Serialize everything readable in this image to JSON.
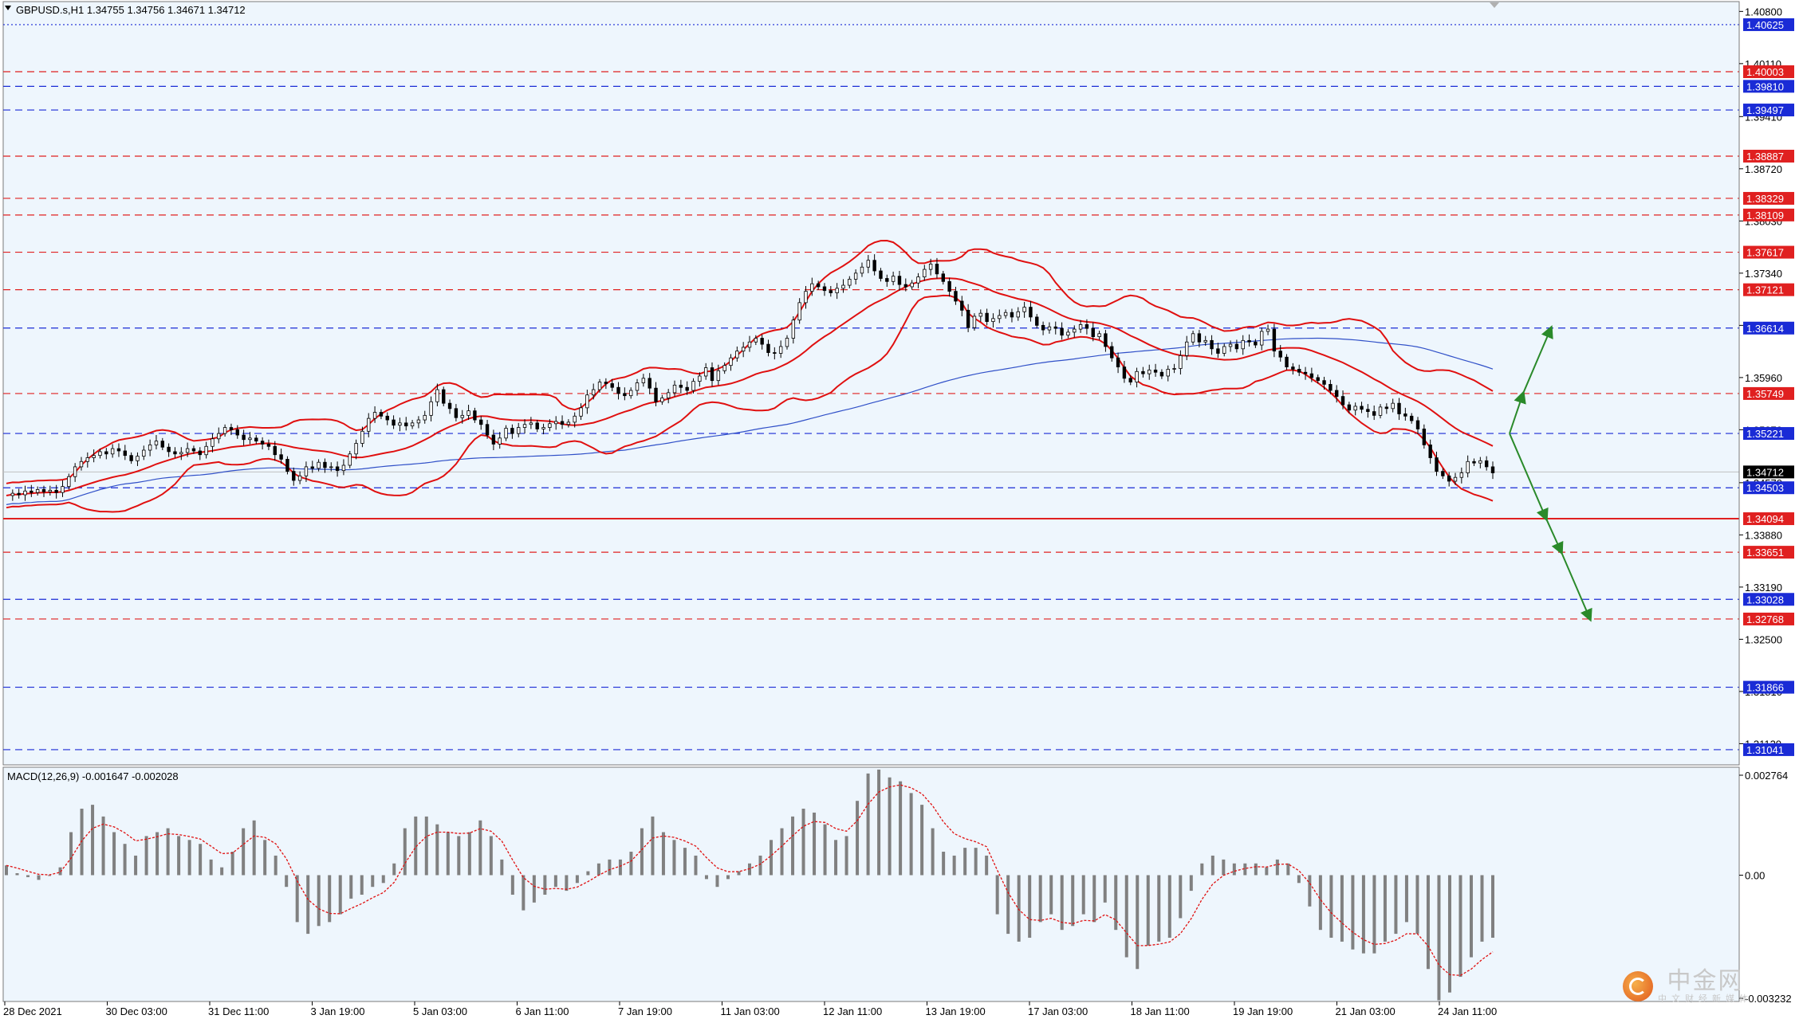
{
  "header": {
    "symbol_info": "GBPUSD.s,H1  1.34755 1.34756 1.34671 1.34712",
    "macd_info": "MACD(12,26,9) -0.001647 -0.002028"
  },
  "colors": {
    "background": "#ffffff",
    "plot_bg": "#eef6fd",
    "red_level": "#e02020",
    "blue_level": "#1a2bd6",
    "bollinger": "#e01010",
    "moving_average": "#3050c8",
    "candle": "#000000",
    "arrow": "#2a8a2a",
    "macd_hist": "#808080",
    "macd_signal": "#e01010"
  },
  "watermark": {
    "main": "中金网",
    "sub": "中文财经新媒体"
  },
  "chart_data": [
    {
      "type": "candlestick",
      "symbol": "GBPUSD.s",
      "timeframe": "H1",
      "title": "GBPUSD.s,H1  1.34755 1.34756 1.34671 1.34712",
      "last_price": 1.34712,
      "ylim": [
        1.3084,
        1.4093
      ],
      "grid": false,
      "x_ticks": [
        "28 Dec 2021",
        "30 Dec 03:00",
        "31 Dec 11:00",
        "3 Jan 19:00",
        "5 Jan 03:00",
        "6 Jan 11:00",
        "7 Jan 19:00",
        "11 Jan 03:00",
        "12 Jan 11:00",
        "13 Jan 19:00",
        "17 Jan 03:00",
        "18 Jan 11:00",
        "19 Jan 19:00",
        "21 Jan 03:00",
        "24 Jan 11:00"
      ],
      "y_ticks": [
        "1.40800",
        "1.40110",
        "1.39410",
        "1.38720",
        "1.38030",
        "1.37340",
        "1.36650",
        "1.35960",
        "1.35270",
        "1.34570",
        "1.33880",
        "1.33190",
        "1.32500",
        "1.31810",
        "1.31120"
      ],
      "levels": [
        {
          "value": 1.40625,
          "label": "1.40625",
          "color": "blue",
          "style": "dotted"
        },
        {
          "value": 1.40003,
          "label": "1.40003",
          "color": "red",
          "style": "dashed"
        },
        {
          "value": 1.3981,
          "label": "1.39810",
          "color": "blue",
          "style": "dashed"
        },
        {
          "value": 1.39497,
          "label": "1.39497",
          "color": "blue",
          "style": "dashed"
        },
        {
          "value": 1.38887,
          "label": "1.38887",
          "color": "red",
          "style": "dashed"
        },
        {
          "value": 1.38329,
          "label": "1.38329",
          "color": "red",
          "style": "dashed"
        },
        {
          "value": 1.38109,
          "label": "1.38109",
          "color": "red",
          "style": "dashed"
        },
        {
          "value": 1.37617,
          "label": "1.37617",
          "color": "red",
          "style": "dashed"
        },
        {
          "value": 1.37121,
          "label": "1.37121",
          "color": "red",
          "style": "dashed"
        },
        {
          "value": 1.36614,
          "label": "1.36614",
          "color": "blue",
          "style": "dashed"
        },
        {
          "value": 1.35749,
          "label": "1.35749",
          "color": "red",
          "style": "dashed"
        },
        {
          "value": 1.35221,
          "label": "1.35221",
          "color": "blue",
          "style": "dashed"
        },
        {
          "value": 1.34503,
          "label": "1.34503",
          "color": "blue",
          "style": "dashed"
        },
        {
          "value": 1.34094,
          "label": "1.34094",
          "color": "red",
          "style": "solid"
        },
        {
          "value": 1.33651,
          "label": "1.33651",
          "color": "red",
          "style": "dashed"
        },
        {
          "value": 1.33028,
          "label": "1.33028",
          "color": "blue",
          "style": "dashed"
        },
        {
          "value": 1.32768,
          "label": "1.32768",
          "color": "red",
          "style": "dashed"
        },
        {
          "value": 1.31866,
          "label": "1.31866",
          "color": "blue",
          "style": "dashed"
        },
        {
          "value": 1.31041,
          "label": "1.31041",
          "color": "blue",
          "style": "dashed"
        }
      ],
      "close_series": [
        1.344,
        1.3443,
        1.3441,
        1.3446,
        1.3444,
        1.3448,
        1.3445,
        1.3447,
        1.3444,
        1.3452,
        1.3465,
        1.3478,
        1.3485,
        1.349,
        1.3493,
        1.3498,
        1.3495,
        1.3502,
        1.3499,
        1.3493,
        1.3486,
        1.3492,
        1.35,
        1.3507,
        1.3512,
        1.3504,
        1.3498,
        1.3495,
        1.3497,
        1.3502,
        1.3499,
        1.3494,
        1.3505,
        1.3515,
        1.3522,
        1.353,
        1.3527,
        1.352,
        1.3514,
        1.3516,
        1.3512,
        1.3508,
        1.3505,
        1.3494,
        1.3488,
        1.3472,
        1.346,
        1.3466,
        1.3478,
        1.3476,
        1.3484,
        1.3477,
        1.3478,
        1.3473,
        1.348,
        1.3495,
        1.3509,
        1.3525,
        1.3542,
        1.355,
        1.3545,
        1.354,
        1.3533,
        1.3536,
        1.3532,
        1.3536,
        1.354,
        1.3546,
        1.3564,
        1.358,
        1.3562,
        1.3555,
        1.3543,
        1.3546,
        1.3552,
        1.354,
        1.3534,
        1.352,
        1.3508,
        1.3516,
        1.3529,
        1.3522,
        1.353,
        1.3534,
        1.3536,
        1.3528,
        1.353,
        1.3535,
        1.3538,
        1.3534,
        1.3537,
        1.3545,
        1.3556,
        1.3573,
        1.358,
        1.359,
        1.3588,
        1.3583,
        1.3575,
        1.3572,
        1.3579,
        1.3589,
        1.3595,
        1.3582,
        1.3564,
        1.3569,
        1.3576,
        1.3586,
        1.3583,
        1.3579,
        1.3591,
        1.3598,
        1.3609,
        1.3592,
        1.3605,
        1.3612,
        1.3622,
        1.3631,
        1.3636,
        1.3643,
        1.3648,
        1.364,
        1.3629,
        1.3628,
        1.3637,
        1.3648,
        1.3672,
        1.3695,
        1.371,
        1.372,
        1.3716,
        1.3711,
        1.3708,
        1.3714,
        1.3718,
        1.3726,
        1.3734,
        1.3742,
        1.3751,
        1.3737,
        1.3727,
        1.3723,
        1.373,
        1.3719,
        1.3716,
        1.3721,
        1.3729,
        1.3739,
        1.3746,
        1.3733,
        1.3723,
        1.371,
        1.3697,
        1.3685,
        1.3662,
        1.3677,
        1.3681,
        1.367,
        1.3674,
        1.3678,
        1.3682,
        1.3676,
        1.3683,
        1.3689,
        1.3676,
        1.3665,
        1.3659,
        1.3663,
        1.3661,
        1.3652,
        1.3656,
        1.366,
        1.3666,
        1.3661,
        1.365,
        1.3654,
        1.3637,
        1.3622,
        1.361,
        1.3595,
        1.359,
        1.3604,
        1.3601,
        1.3606,
        1.3603,
        1.3598,
        1.3607,
        1.3608,
        1.3625,
        1.3643,
        1.3654,
        1.3643,
        1.3645,
        1.3634,
        1.3628,
        1.3637,
        1.364,
        1.3634,
        1.3645,
        1.3643,
        1.3639,
        1.3657,
        1.366,
        1.3631,
        1.3623,
        1.361,
        1.3607,
        1.3603,
        1.3601,
        1.3596,
        1.3592,
        1.3587,
        1.3579,
        1.3571,
        1.356,
        1.3553,
        1.3558,
        1.3554,
        1.3551,
        1.3546,
        1.3557,
        1.3555,
        1.3562,
        1.3548,
        1.3545,
        1.3539,
        1.3528,
        1.3507,
        1.349,
        1.3472,
        1.3466,
        1.3459,
        1.3464,
        1.347,
        1.3485,
        1.3483,
        1.3486,
        1.3478,
        1.347
      ],
      "projection_arrows": [
        {
          "direction": "up",
          "from": 1.35221,
          "via": 1.3575,
          "to": 1.36614
        },
        {
          "direction": "down",
          "from": 1.35221,
          "via": 1.34094,
          "mid": 1.33651,
          "to": 1.32768
        }
      ]
    },
    {
      "type": "histogram",
      "name": "MACD(12,26,9)",
      "title": "MACD(12,26,9) -0.001647 -0.002028",
      "main": -0.001647,
      "signal": -0.002028,
      "ylim": [
        -0.00323,
        0.00276
      ],
      "y_ticks": [
        "0.002764",
        "0.00",
        "-0.003232"
      ],
      "macd_series": [
        0.00025,
        5e-05,
        -5e-05,
        -0.00012,
        -2e-05,
        0.0002,
        0.0011,
        0.0017,
        0.0018,
        0.0015,
        0.0011,
        0.0008,
        0.0005,
        0.001,
        0.0011,
        0.0012,
        0.001,
        0.0009,
        0.0008,
        0.0004,
        0.0002,
        0.0006,
        0.0012,
        0.0014,
        0.0009,
        0.0005,
        -0.0003,
        -0.0012,
        -0.0015,
        -0.0013,
        -0.0012,
        -0.001,
        -0.0006,
        -0.0005,
        -0.0003,
        -0.0002,
        0.0003,
        0.0012,
        0.0015,
        0.0015,
        0.0013,
        0.0011,
        0.001,
        0.0011,
        0.0014,
        0.001,
        0.0004,
        -0.0005,
        -0.0009,
        -0.0007,
        -0.0005,
        -0.0003,
        -0.0004,
        -0.0002,
        0.0001,
        0.0003,
        0.0004,
        0.0004,
        0.0006,
        0.0012,
        0.0015,
        0.0011,
        0.0009,
        0.0007,
        0.0005,
        -0.0001,
        -0.0003,
        -0.0001,
        0.0001,
        0.0003,
        0.0005,
        0.0009,
        0.0012,
        0.0015,
        0.0017,
        0.0016,
        0.0013,
        0.0009,
        0.001,
        0.0019,
        0.0026,
        0.0027,
        0.0025,
        0.0024,
        0.0021,
        0.0018,
        0.0012,
        0.0006,
        0.0005,
        0.0007,
        0.0007,
        0.0005,
        -0.001,
        -0.0015,
        -0.0017,
        -0.0016,
        -0.0012,
        -0.001,
        -0.0014,
        -0.0013,
        -0.001,
        -0.0012,
        -0.0007,
        -0.0014,
        -0.0021,
        -0.0024,
        -0.0018,
        -0.0017,
        -0.0016,
        -0.0011,
        -0.0004,
        0.0003,
        0.0005,
        0.0004,
        0.0003,
        0.0003,
        0.0003,
        0.0002,
        0.0004,
        0.0003,
        -0.0002,
        -0.0008,
        -0.0014,
        -0.0016,
        -0.0017,
        -0.0019,
        -0.002,
        -0.002,
        -0.0017,
        -0.0015,
        -0.0012,
        -0.0015,
        -0.0024,
        -0.0032,
        -0.003,
        -0.0026,
        -0.0021,
        -0.0017,
        -0.0016
      ]
    }
  ]
}
